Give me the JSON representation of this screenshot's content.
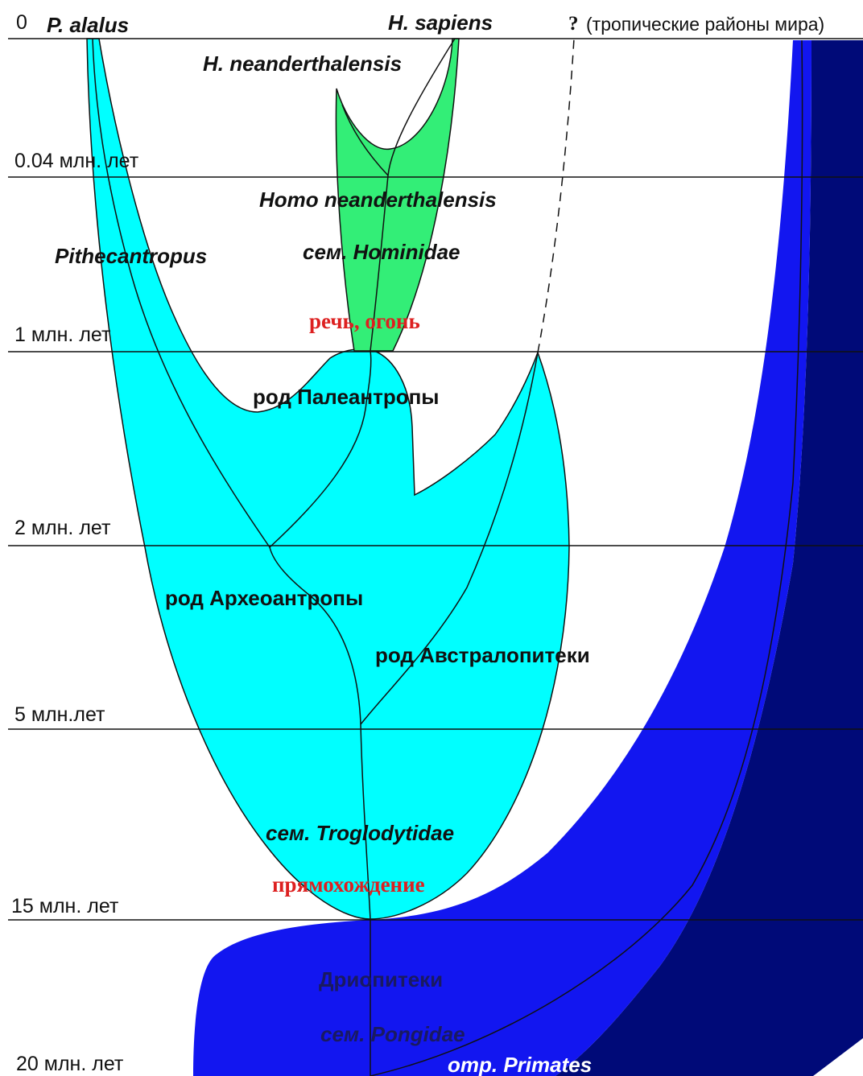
{
  "colors": {
    "primates_outer": "#000a78",
    "primates_mid": "#1216f0",
    "troglodytidae": "#00ffff",
    "hominidae": "#33ee77",
    "outline": "#111111",
    "red_text": "#dd2020"
  },
  "time_marks": {
    "t0": "0",
    "t004": "0.04 млн. лет",
    "t1": "1 млн. лет",
    "t2": "2 млн. лет",
    "t5": "5 млн.лет",
    "t15": "15 млн. лет",
    "t20": "20 млн. лет"
  },
  "species": {
    "p_alalus": "P. alalus",
    "h_sapiens": "H. sapiens",
    "h_neanderthalensis": "H. neanderthalensis",
    "question_mark": "?",
    "tropics_note": "(тропические районы мира)"
  },
  "taxa": {
    "homo_neanderthalensis": "Homo neanderthalensis",
    "hominidae": "сем. Hominidae",
    "pithecantropus": "Pithecantropus",
    "paleoanthropes": "род Палеантропы",
    "archanthropes": "род Археоантропы",
    "australopithecus": "род Австралопитеки",
    "troglodytidae": "сем. Troglodytidae",
    "dryopithecus": "Дриопитеки",
    "pongidae": "сем. Pongidae",
    "primates": "отр. Primates"
  },
  "milestones": {
    "speech_fire": "речь, огонь",
    "bipedalism": "прямохождение"
  }
}
